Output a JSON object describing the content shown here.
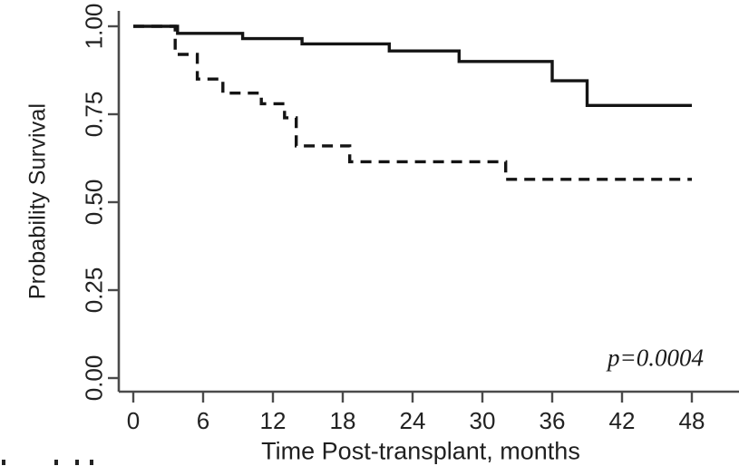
{
  "figure": {
    "y_axis_title": "Probability Survival",
    "x_axis_title": "Time Post-transplant, months",
    "p_value_annotation": "p=0.0004"
  },
  "chart_data": {
    "type": "line",
    "subtype": "kaplan_meier_step",
    "title": "",
    "xlabel": "Time Post-transplant, months",
    "ylabel": "Probability Survival",
    "xlim": [
      0,
      48
    ],
    "ylim": [
      0,
      1.0
    ],
    "x_ticks": [
      0,
      6,
      12,
      18,
      24,
      30,
      36,
      42,
      48
    ],
    "y_ticks": [
      1.0,
      0.75,
      0.5,
      0.25,
      0.0
    ],
    "grid": false,
    "legend": "none",
    "annotation": {
      "text": "p=0.0004",
      "x_month": 45,
      "y_prob": 0.055
    },
    "axis_color": "#4a4a4a",
    "curve_color": "#141414",
    "series": [
      {
        "name": "group-1-solid",
        "line_style": "solid",
        "color": "#141414",
        "steps": [
          [
            0,
            1.0
          ],
          [
            3.8,
            0.98
          ],
          [
            9.4,
            0.965
          ],
          [
            14.5,
            0.95
          ],
          [
            22,
            0.93
          ],
          [
            28,
            0.9
          ],
          [
            36,
            0.845
          ],
          [
            39,
            0.775
          ]
        ],
        "end_month": 48,
        "final_survival": 0.775
      },
      {
        "name": "group-2-dashed",
        "line_style": "dashed",
        "color": "#141414",
        "steps": [
          [
            0,
            1.0
          ],
          [
            3.6,
            0.92
          ],
          [
            5.5,
            0.85
          ],
          [
            7.7,
            0.81
          ],
          [
            11,
            0.78
          ],
          [
            13,
            0.74
          ],
          [
            14,
            0.66
          ],
          [
            18.6,
            0.615
          ],
          [
            32,
            0.565
          ]
        ],
        "end_month": 48,
        "final_survival": 0.565
      }
    ]
  },
  "artifacts": {
    "cutoff_text_marks_x": [
      2,
      60,
      83,
      99
    ]
  }
}
